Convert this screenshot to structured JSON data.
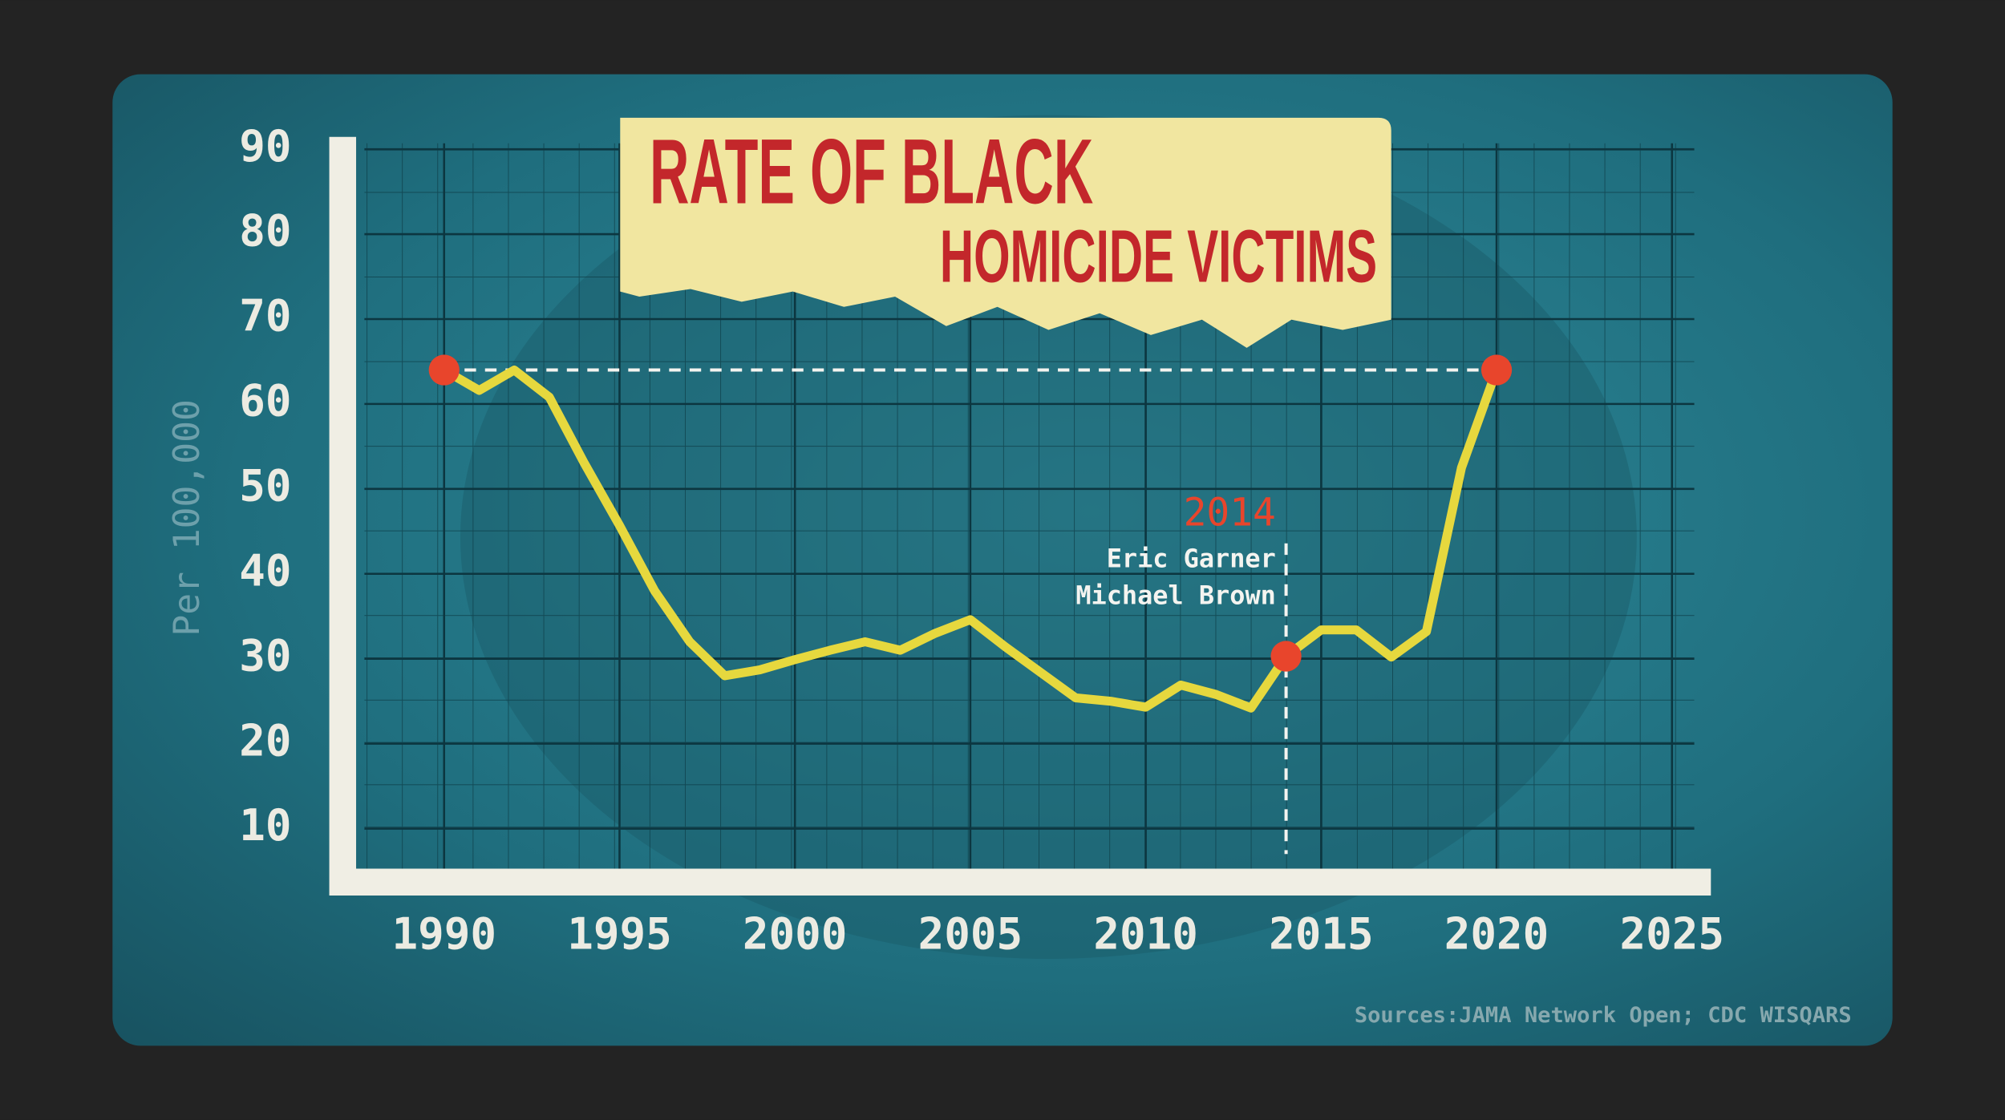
{
  "chart_data": {
    "type": "line",
    "title": [
      "RATE OF BLACK",
      "HOMICIDE VICTIMS"
    ],
    "ylabel": "Per 100,000",
    "x": [
      1990,
      1991,
      1992,
      1993,
      1994,
      1995,
      1996,
      1997,
      1998,
      1999,
      2000,
      2001,
      2002,
      2003,
      2004,
      2005,
      2006,
      2007,
      2008,
      2009,
      2010,
      2011,
      2012,
      2013,
      2014,
      2015,
      2016,
      2017,
      2018,
      2019,
      2020
    ],
    "series": [
      {
        "color": "#e6d83e",
        "values": [
          64,
          61.6,
          64,
          60.8,
          53,
          45.7,
          38,
          32,
          28,
          28.7,
          29.9,
          31,
          32,
          31,
          33,
          34.6,
          31.4,
          28.4,
          25.4,
          25,
          24.3,
          26.9,
          25.8,
          24.2,
          30.3,
          33.4,
          33.4,
          30.2,
          33.2,
          52.5,
          64
        ]
      }
    ],
    "xlim": [
      1987,
      2026
    ],
    "xticks": [
      1990,
      1995,
      2000,
      2005,
      2010,
      2015,
      2020,
      2025
    ],
    "ylim": [
      4,
      91
    ],
    "yticks": [
      10,
      20,
      30,
      40,
      50,
      60,
      70,
      80,
      90
    ],
    "grid": true,
    "highlights": [
      1990,
      2014,
      2020
    ],
    "highlight_color": "#e8452c",
    "annotation": {
      "x": 2014,
      "label": "2014",
      "lines": [
        "Eric Garner",
        "Michael Brown"
      ]
    },
    "source": "Sources:JAMA Network Open; CDC WISQARS"
  }
}
